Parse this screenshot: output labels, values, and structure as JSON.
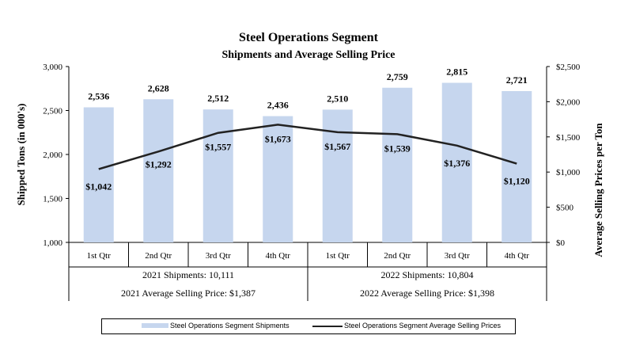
{
  "chart_data": {
    "type": "bar",
    "title": "Steel Operations Segment",
    "subtitle": "Shipments and Average Selling Price",
    "ylabel": "Shipped Tons (in 000's)",
    "y2label": "Average Selling Prices per Ton",
    "ylim": [
      1000,
      3000
    ],
    "y2lim": [
      0,
      2500
    ],
    "y_ticks": [
      "1,000",
      "1,500",
      "2,000",
      "2,500",
      "3,000"
    ],
    "y2_ticks": [
      "$0",
      "$500",
      "$1,000",
      "$1,500",
      "$2,000",
      "$2,500"
    ],
    "categories": [
      "1st Qtr",
      "2nd Qtr",
      "3rd Qtr",
      "4th Qtr",
      "1st Qtr",
      "2nd Qtr",
      "3rd Qtr",
      "4th Qtr"
    ],
    "series": [
      {
        "name": "Steel Operations Segment Shipments",
        "type": "bar",
        "axis": "left",
        "color": "#c6d6ee",
        "values": [
          2536,
          2628,
          2512,
          2436,
          2510,
          2759,
          2815,
          2721
        ],
        "labels": [
          "2,536",
          "2,628",
          "2,512",
          "2,436",
          "2,510",
          "2,759",
          "2,815",
          "2,721"
        ]
      },
      {
        "name": "Steel Operations Segment Average Selling Prices",
        "type": "line",
        "axis": "right",
        "color": "#222222",
        "values": [
          1042,
          1292,
          1557,
          1673,
          1567,
          1539,
          1376,
          1120
        ],
        "labels": [
          "$1,042",
          "$1,292",
          "$1,557",
          "$1,673",
          "$1,567",
          "$1,539",
          "$1,376",
          "$1,120"
        ]
      }
    ],
    "groups": [
      {
        "shipments_label": "2021 Shipments: 10,111",
        "price_label": "2021 Average Selling Price: $1,387"
      },
      {
        "shipments_label": "2022 Shipments: 10,804",
        "price_label": "2022 Average Selling Price: $1,398"
      }
    ],
    "grid": false,
    "legend_position": "bottom"
  }
}
